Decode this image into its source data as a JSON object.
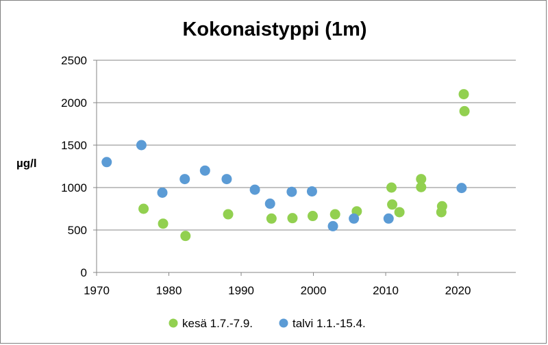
{
  "chart_data": {
    "type": "scatter",
    "title": "Kokonaistyppi (1m)",
    "xlabel": "",
    "ylabel": "µg/l",
    "xlim": [
      1970,
      2028
    ],
    "ylim": [
      0,
      2500
    ],
    "x_ticks": [
      1970,
      1980,
      1990,
      2000,
      2010,
      2020
    ],
    "y_ticks": [
      0,
      500,
      1000,
      1500,
      2000,
      2500
    ],
    "grid": "horizontal",
    "legend": "bottom",
    "series": [
      {
        "name": "kesä 1.7.-7.9.",
        "color": "#92d050",
        "points": [
          {
            "x": 1976.5,
            "y": 750
          },
          {
            "x": 1979.2,
            "y": 575
          },
          {
            "x": 1982.3,
            "y": 430
          },
          {
            "x": 1988.2,
            "y": 685
          },
          {
            "x": 1994.2,
            "y": 635
          },
          {
            "x": 1997.1,
            "y": 640
          },
          {
            "x": 1999.9,
            "y": 665
          },
          {
            "x": 2003.0,
            "y": 685
          },
          {
            "x": 2006.0,
            "y": 720
          },
          {
            "x": 2010.8,
            "y": 1000
          },
          {
            "x": 2010.9,
            "y": 800
          },
          {
            "x": 2011.9,
            "y": 710
          },
          {
            "x": 2014.9,
            "y": 1100
          },
          {
            "x": 2014.9,
            "y": 1005
          },
          {
            "x": 2017.8,
            "y": 780
          },
          {
            "x": 2017.7,
            "y": 710
          },
          {
            "x": 2020.8,
            "y": 2100
          },
          {
            "x": 2020.9,
            "y": 1900
          }
        ]
      },
      {
        "name": "talvi 1.1.-15.4.",
        "color": "#5b9bd5",
        "points": [
          {
            "x": 1971.4,
            "y": 1300
          },
          {
            "x": 1976.2,
            "y": 1500
          },
          {
            "x": 1979.1,
            "y": 940
          },
          {
            "x": 1982.2,
            "y": 1100
          },
          {
            "x": 1985.0,
            "y": 1200
          },
          {
            "x": 1988.0,
            "y": 1100
          },
          {
            "x": 1991.9,
            "y": 975
          },
          {
            "x": 1994.0,
            "y": 810
          },
          {
            "x": 1997.0,
            "y": 950
          },
          {
            "x": 1999.8,
            "y": 955
          },
          {
            "x": 2002.7,
            "y": 545
          },
          {
            "x": 2005.6,
            "y": 635
          },
          {
            "x": 2010.4,
            "y": 635
          },
          {
            "x": 2020.5,
            "y": 995
          }
        ]
      }
    ]
  }
}
